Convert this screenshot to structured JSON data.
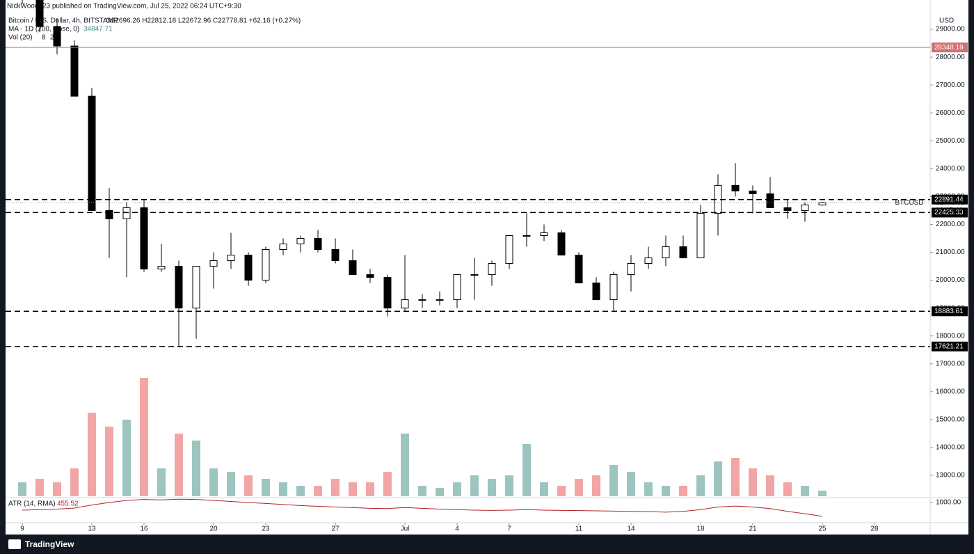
{
  "header": {
    "published": "NickWood123 published on TradingView.com, Jul 25, 2022 06:24 UTC+9:30",
    "symbol": "Bitcoin / U.S. Dollar, 4h, BITSTAMP",
    "ohlc": "O22696.26 H22812.18 L22672.96 C22778.81 +62.16 (+0.27%)",
    "ma_label": "MA - 1D (200, close, 0)",
    "ma_value": "34847.71",
    "vol_label": "Vol (20)",
    "vol_value": "8",
    "vol_ma": "224"
  },
  "chart_data": [
    {
      "type": "candlestick",
      "currency": "USD",
      "x": [
        0,
        1,
        2,
        3,
        4,
        5,
        6,
        7,
        8,
        9,
        10,
        11,
        12,
        13,
        14,
        15,
        16,
        17,
        18,
        19,
        20,
        21,
        22,
        23,
        24,
        25,
        26,
        27,
        28,
        29,
        30,
        31,
        32,
        33,
        34,
        35,
        36,
        37,
        38,
        39,
        40,
        41,
        42,
        43,
        44,
        45,
        46
      ],
      "open": [
        30100,
        30200,
        29100,
        28400,
        26600,
        22500,
        22200,
        22600,
        20400,
        20500,
        19000,
        20500,
        20700,
        20900,
        20000,
        21100,
        21300,
        21500,
        21100,
        20700,
        20200,
        20100,
        19000,
        19300,
        19300,
        19300,
        20200,
        20200,
        20600,
        21600,
        21600,
        21700,
        20900,
        19900,
        19300,
        20200,
        20600,
        20800,
        21200,
        20800,
        22400,
        23400,
        23200,
        23100,
        22600,
        22500,
        22696.26
      ],
      "high": [
        30600,
        30400,
        29400,
        28600,
        26900,
        23300,
        22800,
        22900,
        21300,
        20700,
        20400,
        21000,
        21700,
        21000,
        21200,
        21500,
        21600,
        21800,
        21500,
        21100,
        20400,
        20200,
        20900,
        19500,
        19600,
        20200,
        20800,
        20700,
        21600,
        22400,
        22000,
        21800,
        21000,
        20100,
        20300,
        20900,
        21200,
        21600,
        21600,
        22700,
        23800,
        24200,
        23400,
        23700,
        22900,
        22800,
        22812.18
      ],
      "low": [
        29900,
        28900,
        28100,
        26600,
        22600,
        20800,
        20100,
        20300,
        20300,
        17600,
        17900,
        19700,
        20400,
        19800,
        19900,
        20900,
        21000,
        21000,
        20600,
        20200,
        19900,
        18700,
        18900,
        19000,
        19100,
        19000,
        19300,
        19800,
        20400,
        21200,
        21400,
        20900,
        19900,
        19300,
        18900,
        19600,
        20400,
        20500,
        20800,
        20800,
        21600,
        23000,
        22400,
        22600,
        22200,
        22100,
        22672.96
      ],
      "close": [
        30200,
        29100,
        28400,
        26600,
        22500,
        22200,
        22600,
        20400,
        20500,
        19000,
        20500,
        20700,
        20900,
        20000,
        21100,
        21300,
        21500,
        21100,
        20700,
        20200,
        20100,
        19000,
        19300,
        19300,
        19300,
        20200,
        20200,
        20600,
        21600,
        21600,
        21700,
        20900,
        19900,
        19300,
        20200,
        20600,
        20800,
        21200,
        20800,
        22400,
        23400,
        23200,
        23100,
        22600,
        22500,
        22700,
        22778.81
      ],
      "xlim": [
        -0.96,
        52.2
      ],
      "xticks": [
        {
          "value": 0,
          "label": "9"
        },
        {
          "value": 4,
          "label": "13"
        },
        {
          "value": 7,
          "label": "16"
        },
        {
          "value": 11,
          "label": "20"
        },
        {
          "value": 14,
          "label": "23"
        },
        {
          "value": 18,
          "label": "27"
        },
        {
          "value": 22,
          "label": "Jul"
        },
        {
          "value": 25,
          "label": "4"
        },
        {
          "value": 28,
          "label": "7"
        },
        {
          "value": 32,
          "label": "11"
        },
        {
          "value": 35,
          "label": "14"
        },
        {
          "value": 39,
          "label": "18"
        },
        {
          "value": 42,
          "label": "21"
        },
        {
          "value": 46,
          "label": "25"
        },
        {
          "value": 49,
          "label": "28"
        }
      ],
      "ylim": [
        12250,
        30050
      ],
      "yticks": [
        {
          "value": 13000,
          "label": "13000.00"
        },
        {
          "value": 14000,
          "label": "14000.00"
        },
        {
          "value": 15000,
          "label": "15000.00"
        },
        {
          "value": 16000,
          "label": "16000.00"
        },
        {
          "value": 17000,
          "label": "17000.00"
        },
        {
          "value": 18000,
          "label": "18000.00"
        },
        {
          "value": 19000,
          "label": "19000.00"
        },
        {
          "value": 20000,
          "label": "20000.00"
        },
        {
          "value": 21000,
          "label": "21000.00"
        },
        {
          "value": 22000,
          "label": "22000.00"
        },
        {
          "value": 23000,
          "label": "23000.00"
        },
        {
          "value": 24000,
          "label": "24000.00"
        },
        {
          "value": 25000,
          "label": "25000.00"
        },
        {
          "value": 26000,
          "label": "26000.00"
        },
        {
          "value": 27000,
          "label": "27000.00"
        },
        {
          "value": 28000,
          "label": "28000.00"
        },
        {
          "value": 29000,
          "label": "29000.00"
        }
      ],
      "levels": [
        {
          "value": 28348.19,
          "color": "#d07070",
          "style": "solid"
        },
        {
          "value": 22891.44,
          "color": "#000000",
          "style": "dashed"
        },
        {
          "value": 22425.33,
          "color": "#000000",
          "style": "dashed"
        },
        {
          "value": 18883.61,
          "color": "#000000",
          "style": "dashed"
        },
        {
          "value": 17621.21,
          "color": "#000000",
          "style": "dashed"
        }
      ],
      "last": {
        "name": "BTCUSD",
        "value": 22778.81,
        "countdown": "03:05:49"
      },
      "up_color": "#ffffff",
      "down_color": "#000000"
    },
    {
      "type": "volume",
      "up_color": "#9cc5c0",
      "down_color": "#f2a5a5",
      "values": [
        160,
        200,
        160,
        320,
        960,
        800,
        880,
        1360,
        320,
        720,
        640,
        320,
        280,
        240,
        200,
        160,
        120,
        120,
        200,
        160,
        160,
        280,
        720,
        120,
        96,
        160,
        240,
        200,
        240,
        600,
        160,
        120,
        200,
        240,
        360,
        280,
        160,
        120,
        120,
        240,
        400,
        440,
        320,
        240,
        160,
        120,
        64
      ]
    },
    {
      "type": "line",
      "title": "ATR (14, RMA)",
      "color": "#b22222",
      "values": [
        700,
        720,
        740,
        780,
        900,
        1000,
        1080,
        1120,
        1100,
        1130,
        1120,
        1080,
        1040,
        1000,
        960,
        920,
        880,
        850,
        820,
        800,
        770,
        760,
        800,
        770,
        740,
        720,
        700,
        690,
        700,
        720,
        700,
        690,
        680,
        670,
        660,
        650,
        640,
        620,
        650,
        720,
        820,
        860,
        820,
        760,
        650,
        560,
        455.52
      ],
      "ylim": [
        180,
        1190
      ],
      "yticks": [
        {
          "value": 1000,
          "label": "1000.00"
        }
      ]
    }
  ],
  "footer": {
    "brand": "TradingView"
  }
}
